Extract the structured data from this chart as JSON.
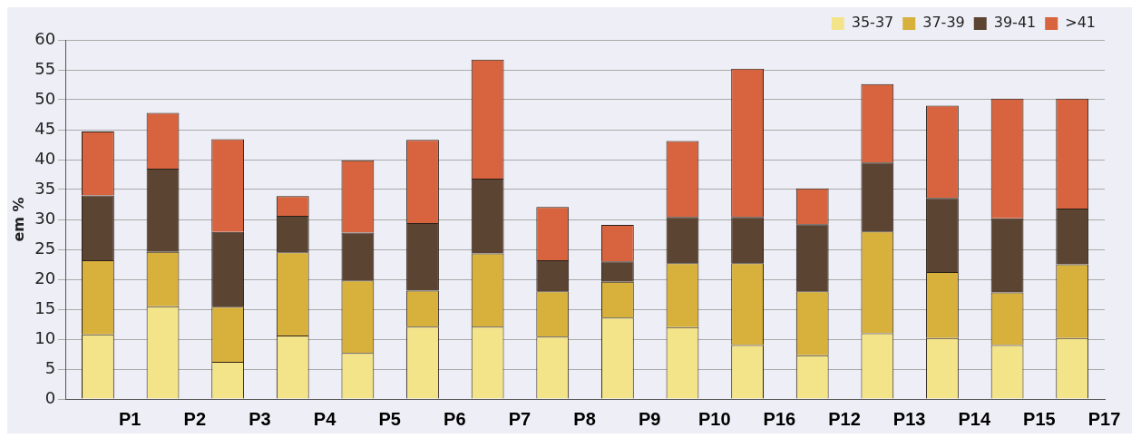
{
  "chart_data": {
    "type": "bar",
    "stacked": true,
    "ylabel": "em %",
    "categories": [
      "P1",
      "P2",
      "P3",
      "P4",
      "P5",
      "P6",
      "P7",
      "P8",
      "P9",
      "P10",
      "P16",
      "P12",
      "P13",
      "P14",
      "P15",
      "P17"
    ],
    "series": [
      {
        "name": "35-37",
        "color": "#f3e48a",
        "values": [
          10.8,
          15.5,
          6.2,
          10.6,
          7.7,
          12.1,
          12.1,
          10.4,
          13.6,
          12,
          9,
          7.3,
          11,
          10.2,
          9,
          10.2
        ]
      },
      {
        "name": "37-39",
        "color": "#d8b13c",
        "values": [
          12.4,
          9.1,
          9.2,
          13.9,
          12.1,
          6,
          12.2,
          7.6,
          6,
          10.7,
          13.7,
          10.7,
          17,
          11,
          8.8,
          12.3
        ]
      },
      {
        "name": "39-41",
        "color": "#5b4431",
        "values": [
          10.8,
          13.9,
          12.5,
          6.1,
          8,
          11.3,
          12.5,
          5.2,
          3.4,
          7.7,
          7.7,
          11.2,
          11.5,
          12.4,
          12.4,
          9.3
        ]
      },
      {
        "name": ">41",
        "color": "#d8643f",
        "values": [
          10.7,
          9.3,
          15.5,
          3.3,
          12.1,
          13.9,
          19.9,
          8.9,
          6.1,
          12.7,
          24.8,
          6,
          13.1,
          15.4,
          20,
          18.4
        ]
      }
    ],
    "ylim": [
      0,
      60
    ],
    "yticks": [
      0,
      5,
      10,
      15,
      20,
      25,
      30,
      35,
      40,
      45,
      50,
      55,
      60
    ],
    "grid": "y",
    "legend": "top right"
  }
}
